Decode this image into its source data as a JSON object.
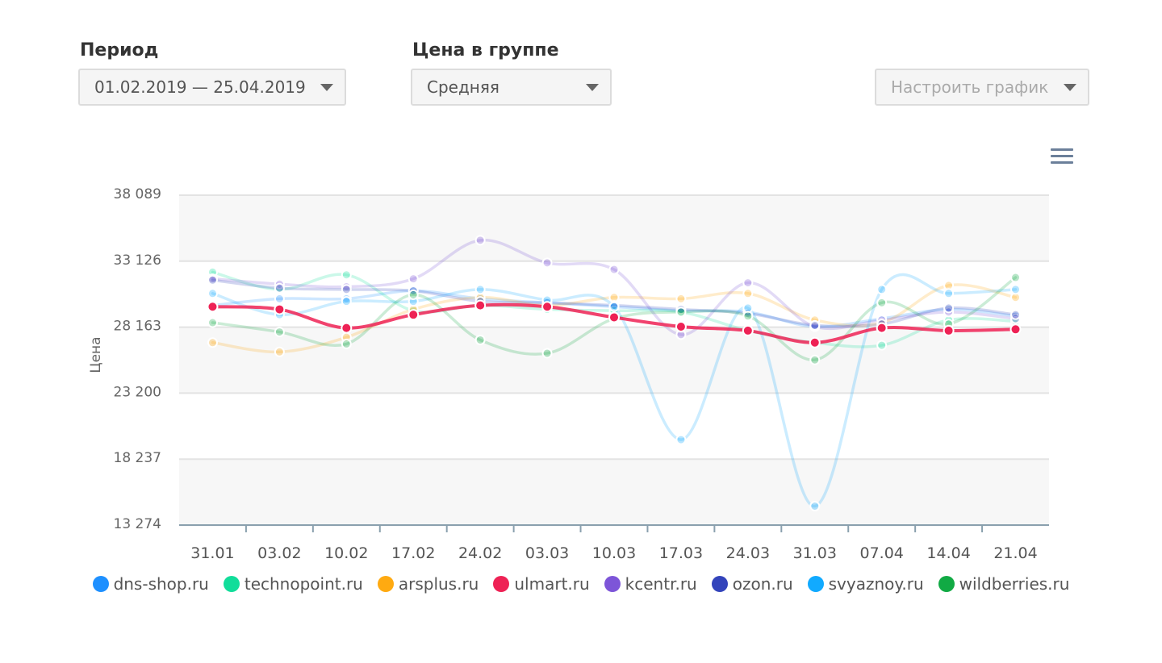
{
  "filters": {
    "period": {
      "label": "Период",
      "value": "01.02.2019 — 25.04.2019"
    },
    "price_group": {
      "label": "Цена в группе",
      "value": "Средняя"
    },
    "configure": {
      "value": "Настроить график"
    }
  },
  "icons": {
    "menu": "hamburger-menu-icon",
    "dropdown": "triangle-down-icon"
  },
  "chart_data": {
    "type": "line",
    "title": "",
    "xlabel": "",
    "ylabel": "Цена",
    "ylim": [
      13274,
      38089
    ],
    "yticks": [
      "13 274",
      "18 237",
      "23 200",
      "28 163",
      "33 126",
      "38 089"
    ],
    "ytick_values": [
      13274,
      18237,
      23200,
      28163,
      33126,
      38089
    ],
    "grid": true,
    "legend": "bottom",
    "categories": [
      "31.01",
      "03.02",
      "10.02",
      "17.02",
      "24.02",
      "03.03",
      "10.03",
      "17.03",
      "24.03",
      "31.03",
      "07.04",
      "14.04",
      "21.04"
    ],
    "series": [
      {
        "name": "dns-shop.ru",
        "color": "#1e90ff",
        "values": [
          29800,
          30300,
          30300,
          30900,
          30300,
          30000,
          29700,
          29400,
          29300,
          28200,
          28800,
          29500,
          29000
        ]
      },
      {
        "name": "technopoint.ru",
        "color": "#11dd9a",
        "values": [
          32300,
          31000,
          32100,
          29400,
          29800,
          29500,
          29400,
          29300,
          27900,
          27000,
          26800,
          28700,
          28600
        ]
      },
      {
        "name": "arsplus.ru",
        "color": "#ffaa11",
        "values": [
          27000,
          26300,
          27400,
          29500,
          30400,
          29800,
          30400,
          30300,
          30700,
          28700,
          28500,
          31300,
          30400
        ]
      },
      {
        "name": "ulmart.ru",
        "color": "#ee2255",
        "values": [
          29700,
          29500,
          28100,
          29100,
          29800,
          29700,
          28900,
          28200,
          27900,
          27000,
          28100,
          27900,
          28000
        ]
      },
      {
        "name": "kcentr.ru",
        "color": "#7d55d8",
        "values": [
          31800,
          31400,
          31200,
          31800,
          34700,
          33000,
          32500,
          27600,
          31500,
          28200,
          28700,
          29300,
          28800
        ]
      },
      {
        "name": "ozon.ru",
        "color": "#3344bb",
        "values": [
          31700,
          31100,
          31000,
          30900,
          30100,
          30000,
          29800,
          29500,
          29200,
          28300,
          28400,
          29600,
          29100
        ]
      },
      {
        "name": "svyaznoy.ru",
        "color": "#11aaff",
        "values": [
          30700,
          29100,
          30100,
          30100,
          31000,
          30200,
          29700,
          19700,
          29600,
          14700,
          31000,
          30700,
          31000
        ]
      },
      {
        "name": "wildberries.ru",
        "color": "#11aa44",
        "values": [
          28500,
          27800,
          26900,
          30600,
          27200,
          26200,
          28800,
          29300,
          29000,
          25700,
          30000,
          28400,
          31900
        ]
      }
    ]
  }
}
